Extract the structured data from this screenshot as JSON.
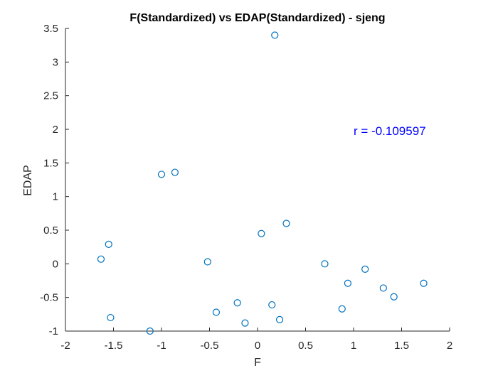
{
  "chart_data": {
    "type": "scatter",
    "title": "F(Standardized) vs EDAP(Standardized) - sjeng",
    "xlabel": "F",
    "ylabel": "EDAP",
    "xlim": [
      -2,
      2
    ],
    "ylim": [
      -1,
      3.5
    ],
    "xticks": [
      -2,
      -1.5,
      -1,
      -0.5,
      0,
      0.5,
      1,
      1.5,
      2
    ],
    "xtick_labels": [
      "-2",
      "-1.5",
      "-1",
      "-0.5",
      "0",
      "0.5",
      "1",
      "1.5",
      "2"
    ],
    "yticks": [
      -1,
      -0.5,
      0,
      0.5,
      1,
      1.5,
      2,
      2.5,
      3,
      3.5
    ],
    "ytick_labels": [
      "-1",
      "-0.5",
      "0",
      "0.5",
      "1",
      "1.5",
      "2",
      "2.5",
      "3",
      "3.5"
    ],
    "grid": false,
    "marker": "circle",
    "color": "#0072bd",
    "annotation": {
      "text": "r = -0.109597",
      "x": 1.0,
      "y": 1.98,
      "color": "#0000ff"
    },
    "points": [
      {
        "x": 0.18,
        "y": 3.4
      },
      {
        "x": -1.0,
        "y": 1.33
      },
      {
        "x": -0.86,
        "y": 1.36
      },
      {
        "x": -1.55,
        "y": 0.29
      },
      {
        "x": -1.63,
        "y": 0.07
      },
      {
        "x": -0.52,
        "y": 0.03
      },
      {
        "x": 0.04,
        "y": 0.45
      },
      {
        "x": 0.3,
        "y": 0.6
      },
      {
        "x": 0.7,
        "y": 0.0
      },
      {
        "x": 1.12,
        "y": -0.08
      },
      {
        "x": 0.94,
        "y": -0.29
      },
      {
        "x": 1.31,
        "y": -0.36
      },
      {
        "x": 1.42,
        "y": -0.49
      },
      {
        "x": 1.73,
        "y": -0.29
      },
      {
        "x": 0.88,
        "y": -0.67
      },
      {
        "x": -0.21,
        "y": -0.58
      },
      {
        "x": 0.15,
        "y": -0.61
      },
      {
        "x": -0.43,
        "y": -0.72
      },
      {
        "x": 0.23,
        "y": -0.83
      },
      {
        "x": -0.13,
        "y": -0.88
      },
      {
        "x": -1.53,
        "y": -0.8
      },
      {
        "x": -1.12,
        "y": -1.0
      }
    ]
  }
}
